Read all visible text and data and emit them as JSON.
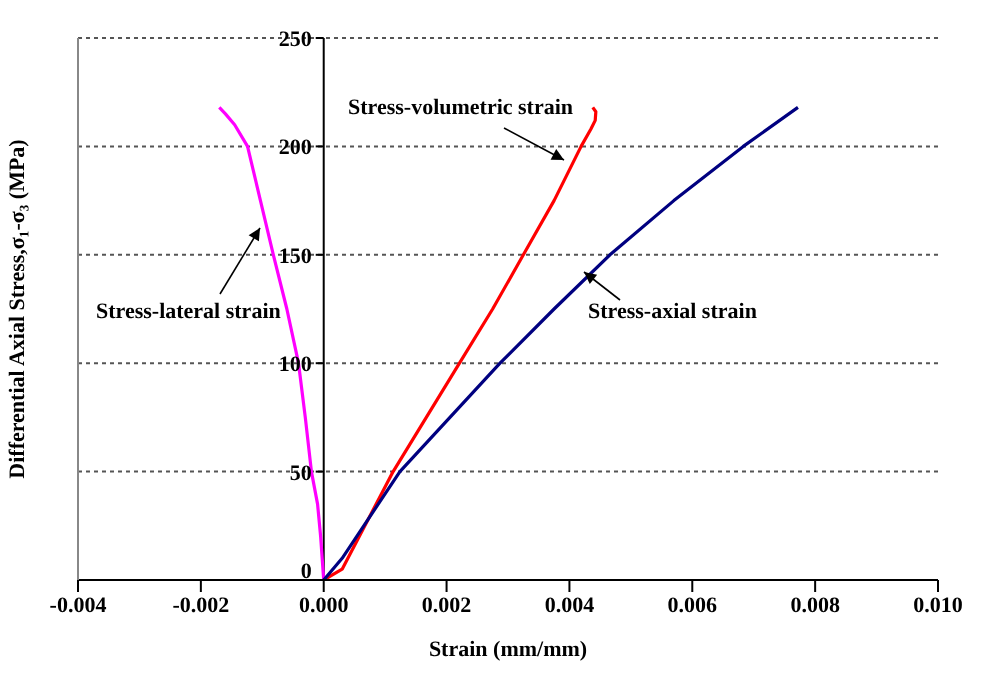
{
  "chart_data": {
    "type": "line",
    "xlabel": "Strain (mm/mm)",
    "ylabel": "Differential Axial Stress,σ₁-σ₃ (MPa)",
    "xlim": [
      -0.004,
      0.01
    ],
    "xticks": [
      {
        "value": -0.004,
        "label": "-0.004"
      },
      {
        "value": -0.002,
        "label": "-0.002"
      },
      {
        "value": 0,
        "label": "0.000"
      },
      {
        "value": 0.002,
        "label": "0.002"
      },
      {
        "value": 0.004,
        "label": "0.004"
      },
      {
        "value": 0.006,
        "label": "0.006"
      },
      {
        "value": 0.008,
        "label": "0.008"
      },
      {
        "value": 0.01,
        "label": "0.010"
      }
    ],
    "ylim": [
      0,
      250
    ],
    "yticks": [
      0,
      50,
      100,
      150,
      200,
      250
    ],
    "grid": "y",
    "marker": "none",
    "line_style": "solid",
    "series": [
      {
        "name": "Stress-lateral strain",
        "color": "#ff00ff",
        "x": [
          0,
          -5e-05,
          -0.0001,
          -0.0002,
          -0.0003,
          -0.00041,
          -0.0006,
          -0.00082,
          -0.00103,
          -0.00124,
          -0.00145,
          -0.0016,
          -0.0017
        ],
        "values": [
          0,
          20,
          35,
          50,
          75,
          100,
          125,
          150,
          175,
          200,
          210,
          215,
          218
        ]
      },
      {
        "name": "Stress-volumetric strain",
        "color": "#ff0000",
        "x": [
          0,
          0.0003,
          0.00113,
          0.00221,
          0.00275,
          0.00325,
          0.00375,
          0.00419,
          0.00435,
          0.00442,
          0.00443,
          0.00438
        ],
        "values": [
          0,
          5,
          50,
          100,
          125,
          150,
          175,
          200,
          208,
          212,
          216,
          218
        ]
      },
      {
        "name": "Stress-axial strain",
        "color": "#000080",
        "x": [
          0,
          0.0003,
          0.00124,
          0.00287,
          0.00375,
          0.00466,
          0.0057,
          0.00683,
          0.00772
        ],
        "values": [
          0,
          10,
          50,
          100,
          125,
          150,
          175,
          200,
          218
        ]
      }
    ]
  }
}
